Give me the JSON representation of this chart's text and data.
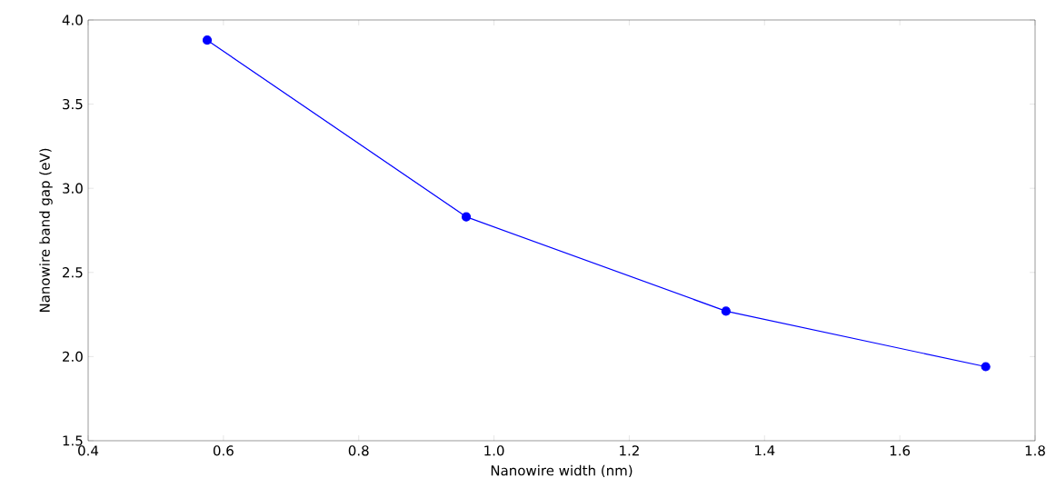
{
  "chart_data": {
    "type": "line",
    "xlabel": "Nanowire width (nm)",
    "ylabel": "Nanowire band gap (eV)",
    "x": [
      0.576,
      0.959,
      1.343,
      1.727
    ],
    "values": [
      3.88,
      2.83,
      2.27,
      1.94
    ],
    "color": "#0000ff",
    "marker": "circle",
    "line_style": "solid",
    "xlim": [
      0.4,
      1.8
    ],
    "ylim": [
      1.5,
      4.0
    ],
    "xticks": [
      0.4,
      0.6,
      0.8,
      {
        "value": 1.0,
        "label": "1.0"
      },
      1.2,
      1.4,
      1.6,
      1.8
    ],
    "yticks": [
      1.5,
      {
        "value": 2.0,
        "label": "2.0"
      },
      2.5,
      {
        "value": 3.0,
        "label": "3.0"
      },
      3.5,
      {
        "value": 4.0,
        "label": "4.0"
      }
    ]
  }
}
